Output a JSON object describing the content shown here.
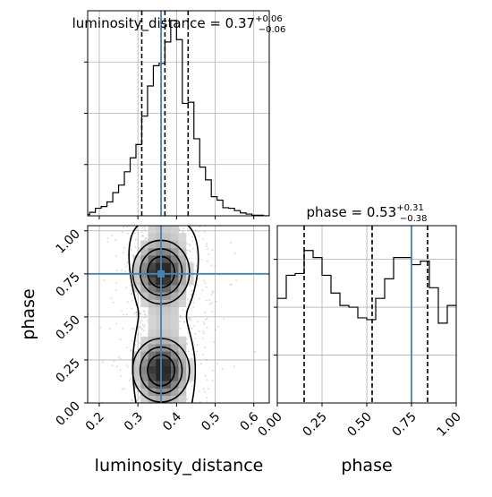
{
  "chart_data": [
    {
      "type": "histogram",
      "panel": "luminosity_distance-marginal",
      "title": "luminosity_distance = 0.37",
      "title_sup": "+0.06",
      "title_sub": "−0.06",
      "bins": [
        0.16,
        0.175,
        0.19,
        0.205,
        0.22,
        0.235,
        0.25,
        0.265,
        0.28,
        0.295,
        0.31,
        0.325,
        0.34,
        0.355,
        0.37,
        0.385,
        0.4,
        0.415,
        0.43,
        0.445,
        0.46,
        0.475,
        0.49,
        0.505,
        0.52,
        0.535,
        0.55,
        0.565,
        0.58,
        0.595,
        0.61,
        0.625,
        0.64
      ],
      "counts": [
        0.2,
        0.6,
        1.3,
        1.6,
        2.4,
        4.0,
        5.3,
        7.6,
        10.0,
        12.3,
        17.2,
        22.4,
        25.9,
        26.3,
        30.0,
        33.7,
        30.4,
        19.4,
        19.6,
        13.3,
        8.4,
        6.2,
        3.3,
        2.7,
        1.4,
        1.3,
        0.9,
        0.5,
        0.3,
        0.1,
        0.1,
        0.0
      ],
      "quantile_lines": [
        0.31,
        0.37,
        0.43
      ],
      "truth": 0.36,
      "xlim": [
        0.17,
        0.64
      ],
      "grid": true
    },
    {
      "type": "histogram",
      "panel": "phase-marginal",
      "title": "phase = 0.53",
      "title_sup": "+0.31",
      "title_sub": "−0.38",
      "bins": [
        0.0,
        0.05,
        0.1,
        0.15,
        0.2,
        0.25,
        0.3,
        0.35,
        0.4,
        0.45,
        0.5,
        0.55,
        0.6,
        0.65,
        0.7,
        0.75,
        0.8,
        0.85,
        0.9,
        0.95,
        1.0
      ],
      "counts": [
        0.59,
        0.72,
        0.73,
        0.86,
        0.82,
        0.72,
        0.62,
        0.55,
        0.54,
        0.48,
        0.47,
        0.59,
        0.7,
        0.82,
        0.82,
        0.78,
        0.8,
        0.65,
        0.45,
        0.55
      ],
      "quantile_lines": [
        0.15,
        0.53,
        0.84
      ],
      "truth": 0.75,
      "xlim": [
        0.0,
        1.0
      ],
      "xticks": [
        "0.00",
        "0.25",
        "0.50",
        "0.75",
        "1.00"
      ],
      "xlabel": "phase",
      "grid": true
    },
    {
      "type": "2d-histogram-contour",
      "panel": "joint",
      "x_param": "luminosity_distance",
      "y_param": "phase",
      "xlabel": "luminosity_distance",
      "ylabel": "phase",
      "xlim": [
        0.17,
        0.64
      ],
      "ylim": [
        0.0,
        1.03
      ],
      "xticks": [
        "0.2",
        "0.3",
        "0.4",
        "0.5",
        "0.6"
      ],
      "yticks": [
        "0.00",
        "0.25",
        "0.50",
        "0.75",
        "1.00"
      ],
      "truth": {
        "x": 0.36,
        "y": 0.75
      },
      "modes": [
        {
          "x": 0.36,
          "y": 0.76,
          "sx": 0.035,
          "sy": 0.09
        },
        {
          "x": 0.36,
          "y": 0.19,
          "sx": 0.035,
          "sy": 0.09
        }
      ]
    }
  ],
  "colors": {
    "histogram": "#000000",
    "quantile": "#000000",
    "truth": "#4682b4",
    "grid": "#b0b0b0"
  }
}
